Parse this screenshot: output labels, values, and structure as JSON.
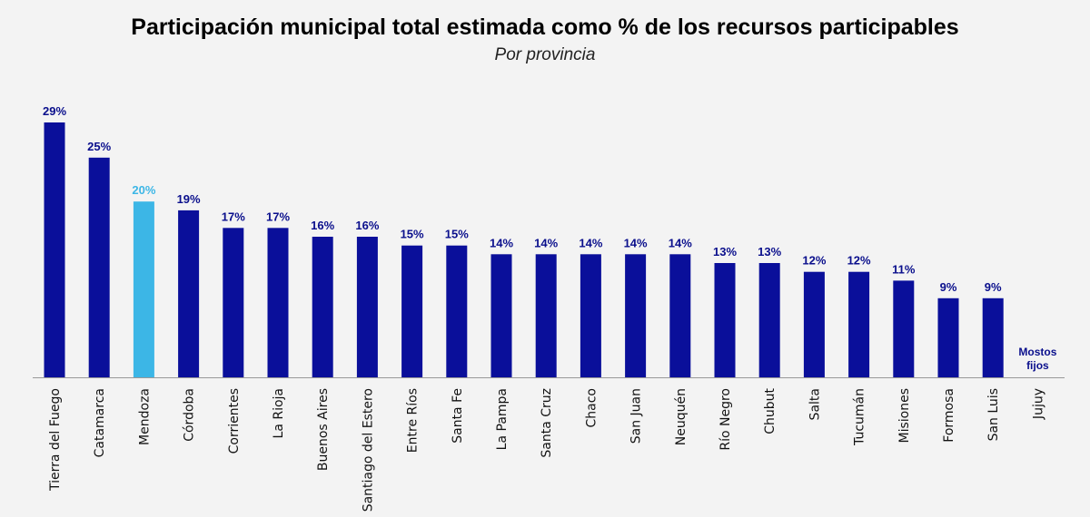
{
  "colors": {
    "bar": "#0a0f9a",
    "highlight": "#3cb6e6",
    "label": "#0a0f8c",
    "highlight_label": "#3cb6e6",
    "axis": "#999999"
  },
  "chart_data": {
    "type": "bar",
    "title": "Participación municipal total estimada como % de los recursos participables",
    "subtitle": "Por provincia",
    "categories": [
      "Tierra del Fuego",
      "Catamarca",
      "Mendoza",
      "Córdoba",
      "Corrientes",
      "La Rioja",
      "Buenos Aires",
      "Santiago del Estero",
      "Entre Ríos",
      "Santa Fe",
      "La Pampa",
      "Santa Cruz",
      "Chaco",
      "San Juan",
      "Neuquén",
      "Río Negro",
      "Chubut",
      "Salta",
      "Tucumán",
      "Misiones",
      "Formosa",
      "San Luis",
      "Jujuy"
    ],
    "values": [
      29,
      25,
      20,
      19,
      17,
      17,
      16,
      16,
      15,
      15,
      14,
      14,
      14,
      14,
      14,
      13,
      13,
      12,
      12,
      11,
      9,
      9,
      null
    ],
    "value_labels": [
      "29%",
      "25%",
      "20%",
      "19%",
      "17%",
      "17%",
      "16%",
      "16%",
      "15%",
      "15%",
      "14%",
      "14%",
      "14%",
      "14%",
      "14%",
      "13%",
      "13%",
      "12%",
      "12%",
      "11%",
      "9%",
      "9%",
      ""
    ],
    "highlight": "Mendoza",
    "annotations": [
      {
        "category": "Jujuy",
        "lines": [
          "Mostos",
          "fijos"
        ]
      }
    ],
    "xlabel": "",
    "ylabel": "",
    "ylim": [
      0,
      29
    ],
    "grid": false,
    "legend": "none"
  }
}
